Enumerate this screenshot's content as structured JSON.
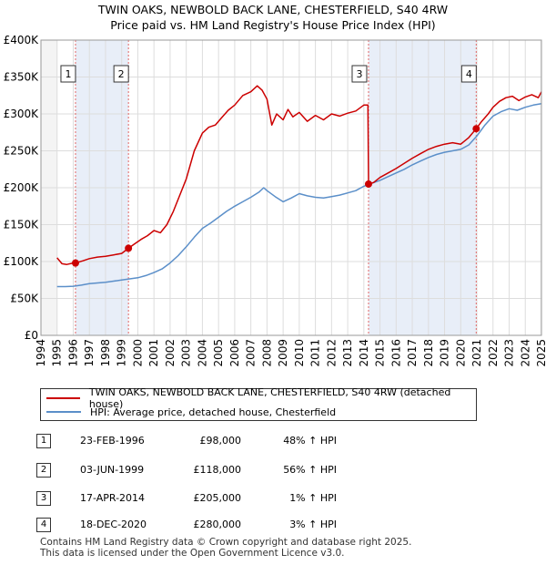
{
  "title": {
    "line1": "TWIN OAKS, NEWBOLD BACK LANE, CHESTERFIELD, S40 4RW",
    "line2": "Price paid vs. HM Land Registry's House Price Index (HPI)"
  },
  "colors": {
    "property": "#cc0000",
    "hpi": "#5b8fc9",
    "shade": "#e8eef8",
    "marker_line": "#e06666",
    "grid": "#dddddd"
  },
  "legend": {
    "property_label": "TWIN OAKS, NEWBOLD BACK LANE, CHESTERFIELD, S40 4RW (detached house)",
    "hpi_label": "HPI: Average price, detached house, Chesterfield"
  },
  "transactions": [
    {
      "num": "1",
      "date": "23-FEB-1996",
      "price": "£98,000",
      "hpi": "48% ↑ HPI"
    },
    {
      "num": "2",
      "date": "03-JUN-1999",
      "price": "£118,000",
      "hpi": "56% ↑ HPI"
    },
    {
      "num": "3",
      "date": "17-APR-2014",
      "price": "£205,000",
      "hpi": "1% ↑ HPI"
    },
    {
      "num": "4",
      "date": "18-DEC-2020",
      "price": "£280,000",
      "hpi": "3% ↑ HPI"
    }
  ],
  "footer": {
    "line1": "Contains HM Land Registry data © Crown copyright and database right 2025.",
    "line2": "This data is licensed under the Open Government Licence v3.0."
  },
  "chart_data": {
    "type": "line",
    "title": "TWIN OAKS, NEWBOLD BACK LANE, CHESTERFIELD, S40 4RW — Price paid vs. HM Land Registry's House Price Index (HPI)",
    "xlabel": "",
    "ylabel": "",
    "xlim": [
      1994,
      2025
    ],
    "ylim": [
      0,
      400000
    ],
    "y_ticks": [
      {
        "value": 0,
        "label": "£0"
      },
      {
        "value": 50000,
        "label": "£50K"
      },
      {
        "value": 100000,
        "label": "£100K"
      },
      {
        "value": 150000,
        "label": "£150K"
      },
      {
        "value": 200000,
        "label": "£200K"
      },
      {
        "value": 250000,
        "label": "£250K"
      },
      {
        "value": 300000,
        "label": "£300K"
      },
      {
        "value": 350000,
        "label": "£350K"
      },
      {
        "value": 400000,
        "label": "£400K"
      }
    ],
    "x_ticks": [
      "1994",
      "1995",
      "1996",
      "1997",
      "1998",
      "1999",
      "2000",
      "2001",
      "2002",
      "2003",
      "2004",
      "2005",
      "2006",
      "2007",
      "2008",
      "2009",
      "2010",
      "2011",
      "2012",
      "2013",
      "2014",
      "2015",
      "2016",
      "2017",
      "2018",
      "2019",
      "2020",
      "2021",
      "2022",
      "2023",
      "2024",
      "2025"
    ],
    "shaded_periods": [
      [
        1996.14,
        1999.42
      ],
      [
        2014.29,
        2020.96
      ]
    ],
    "sales": [
      {
        "label": "1",
        "x": 1996.14,
        "y": 98000
      },
      {
        "label": "2",
        "x": 1999.42,
        "y": 118000
      },
      {
        "label": "3",
        "x": 2014.29,
        "y": 205000
      },
      {
        "label": "4",
        "x": 2020.96,
        "y": 280000
      }
    ],
    "series": [
      {
        "name": "TWIN OAKS, NEWBOLD BACK LANE, CHESTERFIELD, S40 4RW (detached house)",
        "x": [
          1995.0,
          1995.3,
          1995.6,
          1996.0,
          1996.14,
          1996.6,
          1997.0,
          1997.5,
          1998.0,
          1998.5,
          1999.0,
          1999.42,
          1999.8,
          2000.2,
          2000.6,
          2001.0,
          2001.4,
          2001.8,
          2002.2,
          2002.6,
          2003.0,
          2003.5,
          2004.0,
          2004.4,
          2004.8,
          2005.2,
          2005.6,
          2006.0,
          2006.5,
          2007.0,
          2007.4,
          2007.7,
          2008.0,
          2008.3,
          2008.6,
          2009.0,
          2009.3,
          2009.6,
          2010.0,
          2010.5,
          2011.0,
          2011.5,
          2012.0,
          2012.5,
          2013.0,
          2013.5,
          2014.0,
          2014.25,
          2014.29,
          2014.6,
          2015.0,
          2015.5,
          2016.0,
          2016.5,
          2017.0,
          2017.5,
          2018.0,
          2018.5,
          2019.0,
          2019.5,
          2020.0,
          2020.5,
          2020.96,
          2021.3,
          2021.7,
          2022.0,
          2022.4,
          2022.8,
          2023.2,
          2023.6,
          2024.0,
          2024.4,
          2024.8,
          2025.0
        ],
        "values": [
          105000,
          97000,
          96000,
          98000,
          98000,
          101000,
          104000,
          106000,
          107000,
          109000,
          111000,
          118000,
          124000,
          130000,
          135000,
          142000,
          139000,
          150000,
          168000,
          190000,
          212000,
          250000,
          274000,
          282000,
          285000,
          295000,
          305000,
          312000,
          325000,
          330000,
          338000,
          332000,
          320000,
          285000,
          300000,
          292000,
          306000,
          296000,
          302000,
          290000,
          298000,
          292000,
          300000,
          297000,
          301000,
          304000,
          312000,
          312000,
          205000,
          207000,
          214000,
          220000,
          226000,
          233000,
          240000,
          246000,
          252000,
          256000,
          259000,
          261000,
          259000,
          268000,
          280000,
          290000,
          300000,
          309000,
          317000,
          322000,
          324000,
          318000,
          323000,
          326000,
          322000,
          330000
        ]
      },
      {
        "name": "HPI: Average price, detached house, Chesterfield",
        "x": [
          1995.0,
          1995.5,
          1996.0,
          1996.5,
          1997.0,
          1997.5,
          1998.0,
          1998.5,
          1999.0,
          1999.5,
          2000.0,
          2000.5,
          2001.0,
          2001.5,
          2002.0,
          2002.5,
          2003.0,
          2003.5,
          2004.0,
          2004.5,
          2005.0,
          2005.5,
          2006.0,
          2006.5,
          2007.0,
          2007.5,
          2007.8,
          2008.0,
          2008.5,
          2009.0,
          2009.5,
          2010.0,
          2010.5,
          2011.0,
          2011.5,
          2012.0,
          2012.5,
          2013.0,
          2013.5,
          2014.0,
          2014.5,
          2015.0,
          2015.5,
          2016.0,
          2016.5,
          2017.0,
          2017.5,
          2018.0,
          2018.5,
          2019.0,
          2019.5,
          2020.0,
          2020.5,
          2021.0,
          2021.5,
          2022.0,
          2022.5,
          2023.0,
          2023.5,
          2024.0,
          2024.5,
          2025.0
        ],
        "values": [
          66000,
          66000,
          66500,
          68000,
          70000,
          71000,
          72000,
          73500,
          75000,
          76500,
          78000,
          81000,
          85000,
          90000,
          98000,
          108000,
          120000,
          133000,
          145000,
          152000,
          160000,
          168000,
          175000,
          181000,
          187000,
          194000,
          200000,
          196000,
          188000,
          181000,
          186000,
          192000,
          189000,
          187000,
          186000,
          188000,
          190000,
          193000,
          196000,
          202000,
          206000,
          210000,
          215000,
          220000,
          225000,
          231000,
          236000,
          241000,
          245000,
          248000,
          250000,
          252000,
          258000,
          270000,
          285000,
          297000,
          303000,
          307000,
          305000,
          309000,
          312000,
          314000
        ]
      }
    ]
  }
}
